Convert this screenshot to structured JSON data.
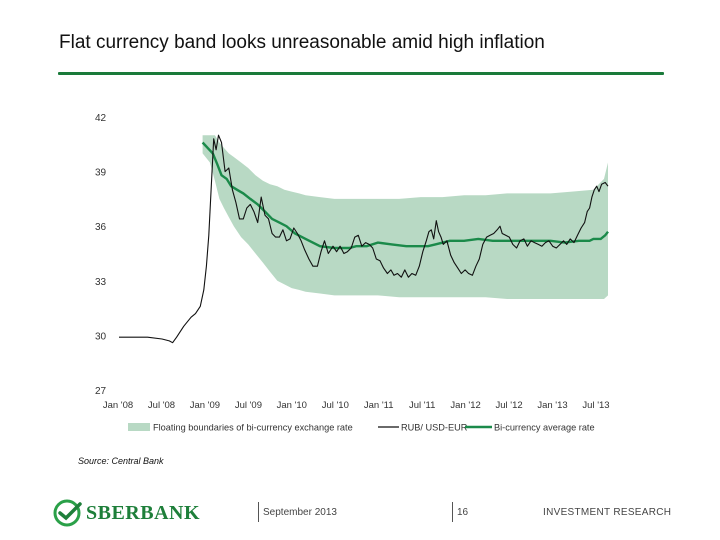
{
  "slide": {
    "title": "Flat currency band looks unreasonable amid high inflation",
    "source": "Source: Central Bank"
  },
  "footer": {
    "logo_text": "SBERBANK",
    "date": "September 2013",
    "page_number": "16",
    "department": "INVESTMENT RESEARCH"
  },
  "colors": {
    "band_fill": "#b8d9c4",
    "rate_line": "#111111",
    "average_line": "#1b8a4a",
    "accent": "#1a7a3a"
  },
  "chart_data": {
    "type": "line",
    "title": "",
    "xlabel": "",
    "ylabel": "",
    "ylim": [
      27,
      42
    ],
    "yticks": [
      "42",
      "39",
      "36",
      "33",
      "30",
      "27"
    ],
    "xticks": [
      "Jan '08",
      "Jul '08",
      "Jan '09",
      "Jul '09",
      "Jan '10",
      "Jul '10",
      "Jan '11",
      "Jul '11",
      "Jan '12",
      "Jul '12",
      "Jan '13",
      "Jul '13"
    ],
    "grid": false,
    "legend_position": "bottom",
    "legend": [
      {
        "label": "Floating boundaries of bi-currency exchange rate",
        "kind": "band"
      },
      {
        "label": "RUB/ USD-EUR",
        "kind": "rate"
      },
      {
        "label": "Bi-currency average rate",
        "kind": "average"
      }
    ],
    "series": [
      {
        "name": "RUB/ USD-EUR",
        "kind": "rate",
        "x": [
          "2008-01-01",
          "2008-03-01",
          "2008-05-01",
          "2008-07-01",
          "2008-08-01",
          "2008-08-15",
          "2008-09-01",
          "2008-10-01",
          "2008-11-01",
          "2008-11-20",
          "2008-12-10",
          "2008-12-25",
          "2009-01-05",
          "2009-01-15",
          "2009-01-25",
          "2009-02-05",
          "2009-02-15",
          "2009-02-25",
          "2009-03-10",
          "2009-03-25",
          "2009-04-10",
          "2009-04-25",
          "2009-05-10",
          "2009-05-25",
          "2009-06-10",
          "2009-06-25",
          "2009-07-10",
          "2009-07-25",
          "2009-08-10",
          "2009-08-25",
          "2009-09-10",
          "2009-09-25",
          "2009-10-10",
          "2009-10-25",
          "2009-11-10",
          "2009-11-25",
          "2009-12-10",
          "2009-12-25",
          "2010-01-10",
          "2010-01-25",
          "2010-02-10",
          "2010-02-25",
          "2010-03-15",
          "2010-04-01",
          "2010-04-20",
          "2010-05-05",
          "2010-05-20",
          "2010-06-05",
          "2010-06-25",
          "2010-07-10",
          "2010-07-25",
          "2010-08-10",
          "2010-08-25",
          "2010-09-10",
          "2010-09-25",
          "2010-10-10",
          "2010-10-25",
          "2010-11-10",
          "2010-11-25",
          "2010-12-10",
          "2010-12-25",
          "2011-01-10",
          "2011-01-25",
          "2011-02-10",
          "2011-02-25",
          "2011-03-10",
          "2011-03-25",
          "2011-04-10",
          "2011-04-25",
          "2011-05-10",
          "2011-05-25",
          "2011-06-10",
          "2011-06-25",
          "2011-07-10",
          "2011-07-25",
          "2011-08-05",
          "2011-08-15",
          "2011-08-25",
          "2011-09-05",
          "2011-09-15",
          "2011-09-25",
          "2011-10-05",
          "2011-10-20",
          "2011-11-05",
          "2011-11-20",
          "2011-12-05",
          "2011-12-20",
          "2012-01-05",
          "2012-01-20",
          "2012-02-05",
          "2012-02-20",
          "2012-03-05",
          "2012-03-20",
          "2012-04-05",
          "2012-04-20",
          "2012-05-05",
          "2012-05-20",
          "2012-06-01",
          "2012-06-10",
          "2012-06-25",
          "2012-07-10",
          "2012-07-25",
          "2012-08-10",
          "2012-08-25",
          "2012-09-10",
          "2012-09-25",
          "2012-10-10",
          "2012-10-25",
          "2012-11-10",
          "2012-11-25",
          "2012-12-10",
          "2012-12-25",
          "2013-01-10",
          "2013-01-25",
          "2013-02-10",
          "2013-02-25",
          "2013-03-10",
          "2013-03-25",
          "2013-04-10",
          "2013-04-25",
          "2013-05-10",
          "2013-05-25",
          "2013-06-05",
          "2013-06-15",
          "2013-06-25",
          "2013-07-05",
          "2013-07-15",
          "2013-07-25",
          "2013-08-05",
          "2013-08-20",
          "2013-09-01"
        ],
        "values": [
          29.9,
          29.9,
          29.9,
          29.8,
          29.7,
          29.6,
          29.9,
          30.5,
          31.0,
          31.2,
          31.6,
          32.5,
          33.8,
          35.5,
          38.0,
          40.8,
          40.2,
          41.0,
          40.6,
          39.0,
          39.2,
          38.0,
          37.3,
          36.4,
          36.4,
          37.0,
          37.2,
          36.8,
          36.2,
          37.6,
          36.6,
          36.4,
          35.6,
          35.4,
          35.4,
          35.8,
          35.2,
          35.3,
          35.9,
          35.6,
          35.2,
          34.7,
          34.2,
          33.8,
          33.8,
          34.6,
          35.2,
          34.5,
          34.9,
          34.6,
          34.9,
          34.5,
          34.6,
          34.8,
          35.4,
          35.5,
          34.9,
          35.1,
          35.0,
          34.8,
          34.2,
          34.1,
          33.7,
          33.4,
          33.6,
          33.3,
          33.4,
          33.2,
          33.6,
          33.2,
          33.4,
          33.3,
          33.8,
          34.6,
          35.2,
          35.7,
          35.8,
          35.3,
          36.3,
          35.7,
          35.4,
          35.0,
          35.2,
          34.4,
          34.0,
          33.7,
          33.4,
          33.6,
          33.4,
          33.3,
          33.8,
          34.2,
          35.0,
          35.4,
          35.5,
          35.6,
          35.8,
          36.0,
          35.6,
          35.5,
          35.4,
          35.0,
          34.8,
          35.2,
          35.3,
          34.9,
          35.2,
          35.1,
          35.0,
          34.9,
          35.1,
          35.2,
          34.9,
          34.8,
          35.0,
          35.2,
          35.0,
          35.3,
          35.1,
          35.5,
          35.9,
          36.2,
          36.8,
          37.0,
          37.6,
          38.0,
          38.2,
          37.9,
          38.3,
          38.4,
          38.2
        ]
      },
      {
        "name": "Bi-currency average rate",
        "kind": "average",
        "x": [
          "2008-12-20",
          "2009-02-01",
          "2009-02-20",
          "2009-03-10",
          "2009-04-01",
          "2009-04-20",
          "2009-05-15",
          "2009-06-10",
          "2009-07-10",
          "2009-08-10",
          "2009-09-10",
          "2009-10-10",
          "2009-11-10",
          "2009-12-10",
          "2010-01-15",
          "2010-03-01",
          "2010-05-01",
          "2010-07-01",
          "2010-09-01",
          "2010-10-01",
          "2010-11-15",
          "2011-01-01",
          "2011-03-01",
          "2011-05-01",
          "2011-08-01",
          "2011-09-01",
          "2011-11-01",
          "2012-01-01",
          "2012-03-01",
          "2012-05-01",
          "2012-07-01",
          "2012-09-01",
          "2012-11-01",
          "2013-01-01",
          "2013-03-01",
          "2013-05-01",
          "2013-06-15",
          "2013-07-01",
          "2013-08-01",
          "2013-08-20",
          "2013-09-01"
        ],
        "values": [
          40.6,
          40.0,
          39.4,
          38.8,
          38.6,
          38.2,
          38.0,
          37.8,
          37.5,
          37.2,
          36.8,
          36.4,
          36.2,
          36.0,
          35.6,
          35.3,
          34.9,
          34.8,
          34.8,
          34.9,
          34.9,
          35.1,
          35.0,
          34.9,
          34.9,
          35.0,
          35.2,
          35.2,
          35.3,
          35.2,
          35.2,
          35.2,
          35.2,
          35.2,
          35.1,
          35.2,
          35.2,
          35.3,
          35.3,
          35.5,
          35.7
        ]
      },
      {
        "name": "Floating boundaries of bi-currency exchange rate",
        "kind": "band",
        "x": [
          "2008-12-20",
          "2009-01-20",
          "2009-02-10",
          "2009-03-01",
          "2009-03-20",
          "2009-04-10",
          "2009-05-01",
          "2009-06-01",
          "2009-07-01",
          "2009-08-01",
          "2009-09-01",
          "2009-10-01",
          "2009-11-01",
          "2009-12-01",
          "2010-01-01",
          "2010-02-01",
          "2010-03-01",
          "2010-05-01",
          "2010-07-01",
          "2010-09-01",
          "2010-11-01",
          "2011-01-01",
          "2011-04-01",
          "2011-07-01",
          "2011-10-01",
          "2012-01-01",
          "2012-04-01",
          "2012-07-01",
          "2012-10-01",
          "2013-01-01",
          "2013-04-01",
          "2013-07-01",
          "2013-08-15",
          "2013-09-01"
        ],
        "upper": [
          41.0,
          41.0,
          41.0,
          40.6,
          40.3,
          40.0,
          39.8,
          39.5,
          39.2,
          38.8,
          38.5,
          38.3,
          38.2,
          38.0,
          37.9,
          37.8,
          37.7,
          37.6,
          37.5,
          37.5,
          37.5,
          37.5,
          37.5,
          37.6,
          37.6,
          37.7,
          37.7,
          37.8,
          37.8,
          37.8,
          37.9,
          38.0,
          38.6,
          39.5
        ],
        "lower": [
          40.0,
          39.5,
          38.5,
          37.5,
          37.0,
          36.5,
          36.0,
          35.4,
          35.0,
          34.5,
          34.0,
          33.5,
          33.0,
          32.8,
          32.6,
          32.5,
          32.4,
          32.3,
          32.2,
          32.2,
          32.2,
          32.2,
          32.1,
          32.1,
          32.1,
          32.1,
          32.1,
          32.0,
          32.0,
          32.0,
          32.0,
          32.0,
          32.0,
          32.2
        ]
      }
    ]
  }
}
